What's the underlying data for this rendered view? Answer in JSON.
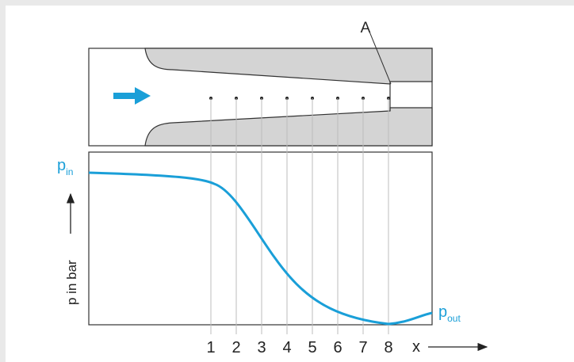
{
  "colors": {
    "accent": "#1a9fd8",
    "solid": "#d4d4d4",
    "line": "#333333",
    "grid": "#bdbdbd"
  },
  "nozzle": {
    "point_label": "A",
    "flow_arrow_icon": "right-arrow-icon"
  },
  "graph": {
    "y_axis": {
      "label": "p in bar"
    },
    "p_in": {
      "symbol": "p",
      "sub": "in"
    },
    "p_out": {
      "symbol": "p",
      "sub": "out"
    },
    "x_axis": {
      "label": "x",
      "ticks": [
        "1",
        "2",
        "3",
        "4",
        "5",
        "6",
        "7",
        "8"
      ]
    }
  }
}
